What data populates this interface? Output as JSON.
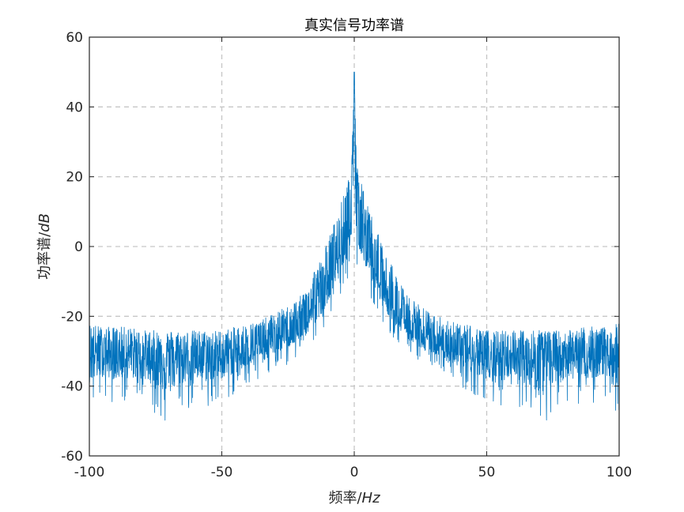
{
  "chart_data": {
    "type": "line",
    "title": "真实信号功率谱",
    "xlabel": "频率/Hz",
    "xlabel_parts": {
      "prefix": "频率/",
      "italic": "Hz"
    },
    "ylabel": "功率谱/dB",
    "ylabel_parts": {
      "prefix": "功率谱/",
      "italic": "dB"
    },
    "xlim": [
      -100,
      100
    ],
    "ylim": [
      -60,
      60
    ],
    "xticks": [
      -100,
      -50,
      0,
      50,
      100
    ],
    "yticks": [
      -60,
      -40,
      -20,
      0,
      20,
      40,
      60
    ],
    "xtick_labels": [
      "-100",
      "-50",
      "0",
      "50",
      "100"
    ],
    "ytick_labels": [
      "-60",
      "-40",
      "-20",
      "0",
      "20",
      "40",
      "60"
    ],
    "grid": true,
    "grid_style": "dashed",
    "series_color": "#0072BD",
    "series": [
      {
        "x": [
          -100,
          -95,
          -90,
          -85,
          -80,
          -75,
          -70,
          -65,
          -60,
          -55,
          -50,
          -45,
          -40,
          -35,
          -30,
          -25,
          -20,
          -17,
          -15,
          -12,
          -10,
          -8,
          -6,
          -4,
          -2,
          -1,
          0,
          1,
          2,
          4,
          6,
          8,
          10,
          12,
          15,
          17,
          20,
          25,
          30,
          35,
          40,
          45,
          50,
          55,
          60,
          65,
          70,
          75,
          80,
          85,
          90,
          95,
          100
        ],
        "values": [
          -30,
          -31,
          -32,
          -31,
          -32,
          -33,
          -32,
          -33,
          -32,
          -33,
          -32,
          -31,
          -30,
          -29,
          -27,
          -25,
          -23,
          -20,
          -17,
          -14,
          -11,
          -7,
          -3,
          0,
          5,
          10,
          50,
          10,
          5,
          0,
          -3,
          -7,
          -11,
          -14,
          -17,
          -20,
          -23,
          -25,
          -27,
          -29,
          -30,
          -31,
          -32,
          -33,
          -32,
          -33,
          -32,
          -33,
          -32,
          -31,
          -32,
          -31,
          -30
        ],
        "peak_envelope": [
          -22,
          -23,
          -23,
          -23,
          -24,
          -24,
          -24,
          -24,
          -24,
          -24,
          -24,
          -23,
          -22,
          -21,
          -19,
          -17,
          -14,
          -10,
          -6,
          -3,
          2,
          6,
          10,
          15,
          20,
          23,
          50,
          23,
          20,
          15,
          10,
          6,
          2,
          -3,
          -6,
          -10,
          -14,
          -17,
          -19,
          -21,
          -22,
          -23,
          -24,
          -24,
          -24,
          -24,
          -24,
          -24,
          -24,
          -23,
          -23,
          -23,
          -22
        ],
        "trough_envelope": [
          -50,
          -45,
          -45,
          -46,
          -46,
          -48,
          -55,
          -47,
          -46,
          -46,
          -45,
          -43,
          -40,
          -38,
          -35,
          -34,
          -32,
          -30,
          -27,
          -25,
          -22,
          -18,
          -15,
          -12,
          -8,
          -5,
          0,
          -5,
          -8,
          -12,
          -15,
          -18,
          -22,
          -25,
          -27,
          -30,
          -32,
          -34,
          -35,
          -38,
          -40,
          -43,
          -45,
          -46,
          -46,
          -47,
          -55,
          -48,
          -46,
          -46,
          -45,
          -45,
          -50
        ]
      }
    ]
  }
}
